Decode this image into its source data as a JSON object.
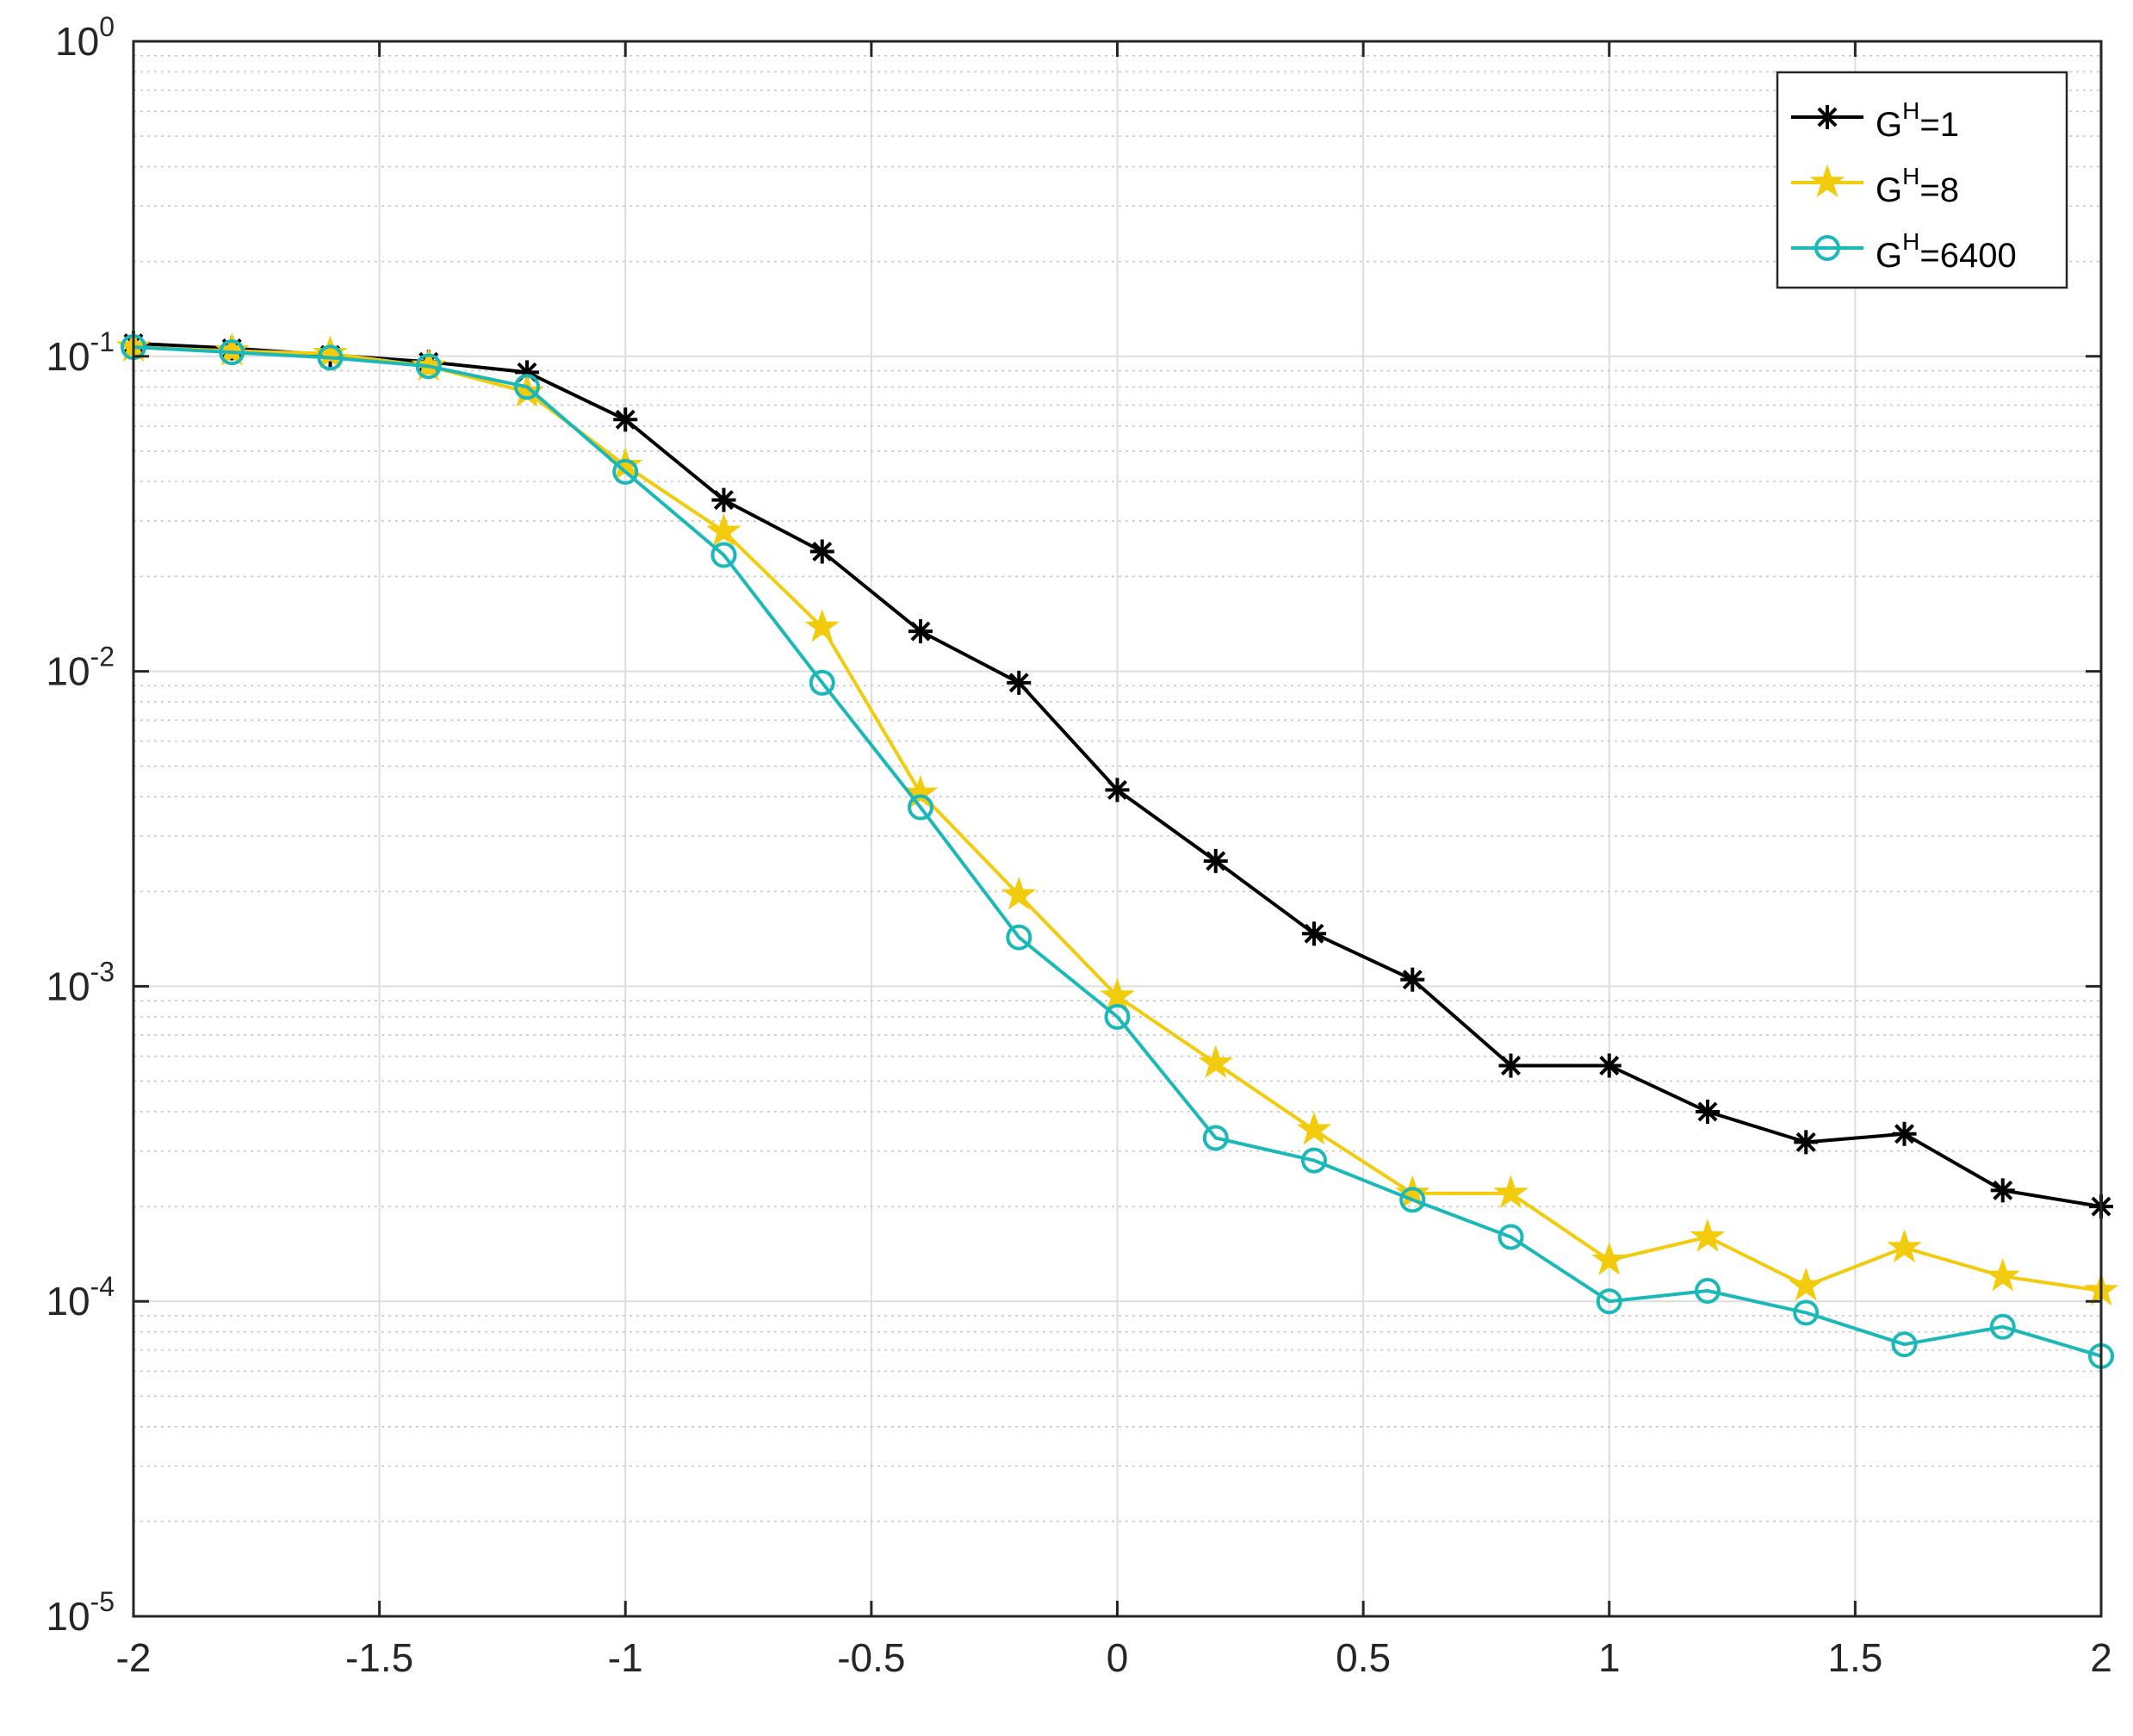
{
  "chart_data": {
    "type": "line",
    "title": "",
    "xlabel": "",
    "ylabel": "",
    "x_scale": "linear",
    "y_scale": "log",
    "xlim": [
      -2,
      2
    ],
    "ylim": [
      1e-05,
      1
    ],
    "grid": true,
    "minor_grid_y": true,
    "legend_position": "top-right",
    "x_ticks": [
      -2,
      -1.5,
      -1,
      -0.5,
      0,
      0.5,
      1,
      1.5,
      2
    ],
    "x_tick_labels": [
      "-2",
      "-1.5",
      "-1",
      "-0.5",
      "0",
      "0.5",
      "1",
      "1.5",
      "2"
    ],
    "y_ticks": [
      1e-05,
      0.0001,
      0.001,
      0.01,
      0.1,
      1
    ],
    "y_tick_labels": [
      {
        "base": "10",
        "exp": "-5"
      },
      {
        "base": "10",
        "exp": "-4"
      },
      {
        "base": "10",
        "exp": "-3"
      },
      {
        "base": "10",
        "exp": "-2"
      },
      {
        "base": "10",
        "exp": "-1"
      },
      {
        "base": "10",
        "exp": "0"
      }
    ],
    "x": [
      -2,
      -1.8,
      -1.6,
      -1.4,
      -1.2,
      -1,
      -0.8,
      -0.6,
      -0.4,
      -0.2,
      0,
      0.2,
      0.4,
      0.6,
      0.8,
      1,
      1.2,
      1.4,
      1.6,
      1.8,
      2
    ],
    "series": [
      {
        "name_parts": [
          "G",
          "H",
          "=1"
        ],
        "color": "#000000",
        "marker": "asterisk",
        "values": [
          0.11,
          0.106,
          0.101,
          0.096,
          0.089,
          0.063,
          0.035,
          0.024,
          0.0134,
          0.0092,
          0.0042,
          0.0025,
          0.00147,
          0.00105,
          0.00056,
          0.00056,
          0.0004,
          0.00032,
          0.00034,
          0.000225,
          0.0002
        ]
      },
      {
        "name_parts": [
          "G",
          "H",
          "=8"
        ],
        "color": "#f2cc0c",
        "marker": "star",
        "values": [
          0.107,
          0.104,
          0.102,
          0.093,
          0.077,
          0.045,
          0.0278,
          0.0138,
          0.0041,
          0.00195,
          0.00093,
          0.00057,
          0.00035,
          0.00022,
          0.00022,
          0.000135,
          0.00016,
          0.000112,
          0.000148,
          0.00012,
          0.000108
        ]
      },
      {
        "name_parts": [
          "G",
          "H",
          "=6400"
        ],
        "color": "#1ab8b8",
        "marker": "circle",
        "values": [
          0.107,
          0.103,
          0.099,
          0.093,
          0.08,
          0.043,
          0.0234,
          0.0092,
          0.0037,
          0.00143,
          0.0008,
          0.00033,
          0.00028,
          0.00021,
          0.00016,
          0.0001,
          0.000108,
          9.2e-05,
          7.3e-05,
          8.3e-05,
          6.7e-05
        ]
      }
    ]
  }
}
